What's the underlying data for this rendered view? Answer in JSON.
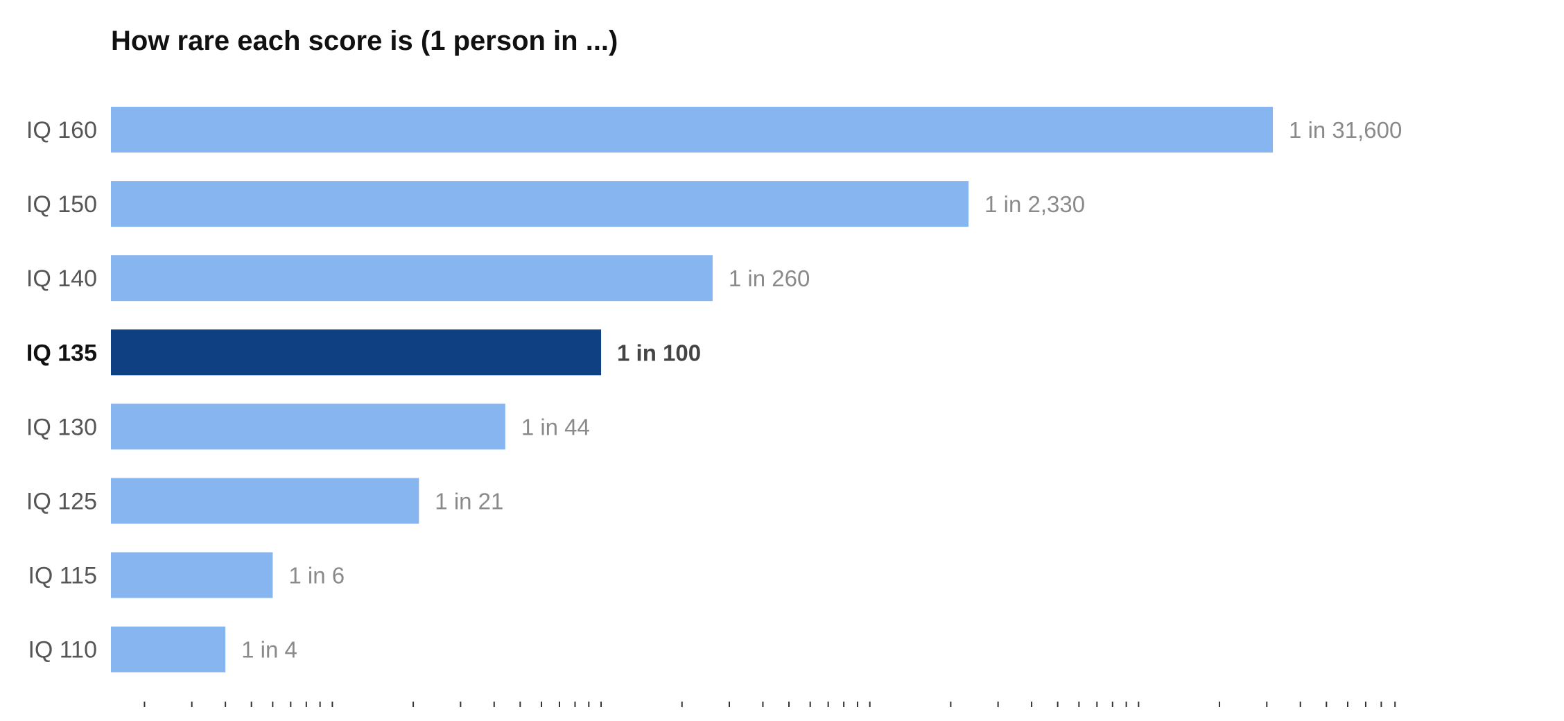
{
  "chart_data": {
    "type": "bar",
    "orientation": "horizontal",
    "title": "How rare each score is (1 person in ...)",
    "xscale": "log",
    "xlim": [
      1.5,
      100000
    ],
    "grid": false,
    "legend": "none",
    "categories": [
      "IQ 160",
      "IQ 150",
      "IQ 140",
      "IQ 135",
      "IQ 130",
      "IQ 125",
      "IQ 115",
      "IQ 110"
    ],
    "values": [
      31600,
      2330,
      260,
      100,
      44,
      21,
      6,
      4
    ],
    "data_labels": [
      "1 in 31,600",
      "1 in 2,330",
      "1 in 260",
      "1 in 100",
      "1 in 44",
      "1 in 21",
      "1 in 6",
      "1 in 4"
    ],
    "highlight_index": 3,
    "colors": {
      "bar": "#86b5ef",
      "highlight": "#0f4081"
    }
  }
}
